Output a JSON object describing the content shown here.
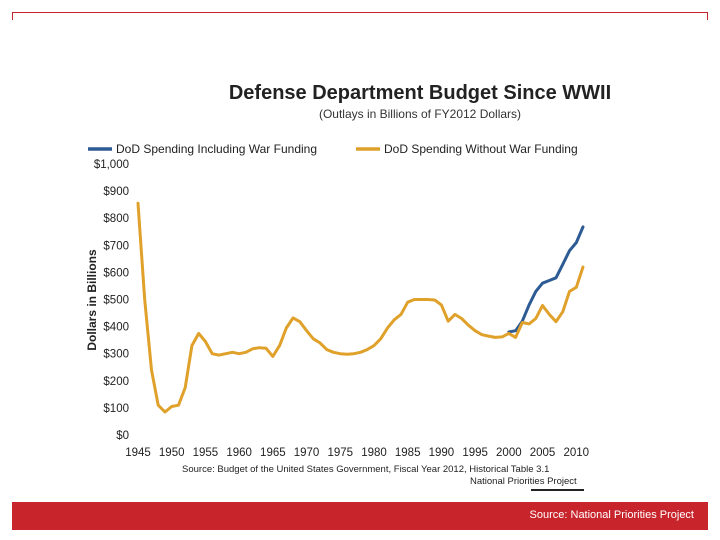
{
  "colors": {
    "accent": "#c8242c",
    "series_with_war": "#2d5b93",
    "series_without_war": "#e0a12b"
  },
  "footer": {
    "source": "Source: National Priorities Project"
  },
  "chart_data": {
    "type": "line",
    "title": "Defense Department Budget Since WWII",
    "subtitle": "(Outlays in Billions of FY2012 Dollars)",
    "xlabel": "",
    "ylabel": "Dollars in Billions",
    "xlim": [
      1945,
      2011
    ],
    "ylim": [
      0,
      1000
    ],
    "x_ticks": [
      1945,
      1950,
      1955,
      1960,
      1965,
      1970,
      1975,
      1980,
      1985,
      1990,
      1995,
      2000,
      2005,
      2010
    ],
    "y_ticks": [
      {
        "value": 0,
        "label": "$0"
      },
      {
        "value": 100,
        "label": "$100"
      },
      {
        "value": 200,
        "label": "$200"
      },
      {
        "value": 300,
        "label": "$300"
      },
      {
        "value": 400,
        "label": "$400"
      },
      {
        "value": 500,
        "label": "$500"
      },
      {
        "value": 600,
        "label": "$600"
      },
      {
        "value": 700,
        "label": "$700"
      },
      {
        "value": 800,
        "label": "$800"
      },
      {
        "value": 900,
        "label": "$900"
      },
      {
        "value": 1000,
        "label": "$1,000"
      }
    ],
    "legend_position": "top",
    "series": [
      {
        "name": "DoD Spending Including War Funding",
        "color": "#2d5b93",
        "points": [
          [
            2000,
            380
          ],
          [
            2001,
            385
          ],
          [
            2002,
            420
          ],
          [
            2003,
            480
          ],
          [
            2004,
            530
          ],
          [
            2005,
            560
          ],
          [
            2006,
            570
          ],
          [
            2007,
            580
          ],
          [
            2008,
            630
          ],
          [
            2009,
            680
          ],
          [
            2010,
            710
          ],
          [
            2011,
            768
          ]
        ]
      },
      {
        "name": "DoD Spending Without War Funding",
        "color": "#e0a12b",
        "points": [
          [
            1945,
            855
          ],
          [
            1946,
            500
          ],
          [
            1947,
            240
          ],
          [
            1948,
            110
          ],
          [
            1949,
            85
          ],
          [
            1950,
            105
          ],
          [
            1951,
            110
          ],
          [
            1952,
            175
          ],
          [
            1953,
            330
          ],
          [
            1954,
            375
          ],
          [
            1955,
            345
          ],
          [
            1956,
            300
          ],
          [
            1957,
            295
          ],
          [
            1958,
            300
          ],
          [
            1959,
            305
          ],
          [
            1960,
            300
          ],
          [
            1961,
            305
          ],
          [
            1962,
            318
          ],
          [
            1963,
            322
          ],
          [
            1964,
            320
          ],
          [
            1965,
            290
          ],
          [
            1966,
            330
          ],
          [
            1967,
            395
          ],
          [
            1968,
            432
          ],
          [
            1969,
            418
          ],
          [
            1970,
            385
          ],
          [
            1971,
            355
          ],
          [
            1972,
            340
          ],
          [
            1973,
            315
          ],
          [
            1974,
            305
          ],
          [
            1975,
            300
          ],
          [
            1976,
            298
          ],
          [
            1977,
            300
          ],
          [
            1978,
            305
          ],
          [
            1979,
            315
          ],
          [
            1980,
            330
          ],
          [
            1981,
            355
          ],
          [
            1982,
            395
          ],
          [
            1983,
            425
          ],
          [
            1984,
            445
          ],
          [
            1985,
            490
          ],
          [
            1986,
            500
          ],
          [
            1987,
            500
          ],
          [
            1988,
            500
          ],
          [
            1989,
            498
          ],
          [
            1990,
            480
          ],
          [
            1991,
            420
          ],
          [
            1992,
            445
          ],
          [
            1993,
            430
          ],
          [
            1994,
            405
          ],
          [
            1995,
            385
          ],
          [
            1996,
            370
          ],
          [
            1997,
            365
          ],
          [
            1998,
            360
          ],
          [
            1999,
            362
          ],
          [
            2000,
            375
          ],
          [
            2001,
            360
          ],
          [
            2002,
            415
          ],
          [
            2003,
            410
          ],
          [
            2004,
            430
          ],
          [
            2005,
            478
          ],
          [
            2006,
            445
          ],
          [
            2007,
            418
          ],
          [
            2008,
            455
          ],
          [
            2009,
            530
          ],
          [
            2010,
            545
          ],
          [
            2011,
            620
          ]
        ]
      }
    ],
    "source_note": "Source: Budget of the United States Government, Fiscal Year 2012, Historical Table 3.1",
    "brand_note": "National Priorities Project"
  }
}
